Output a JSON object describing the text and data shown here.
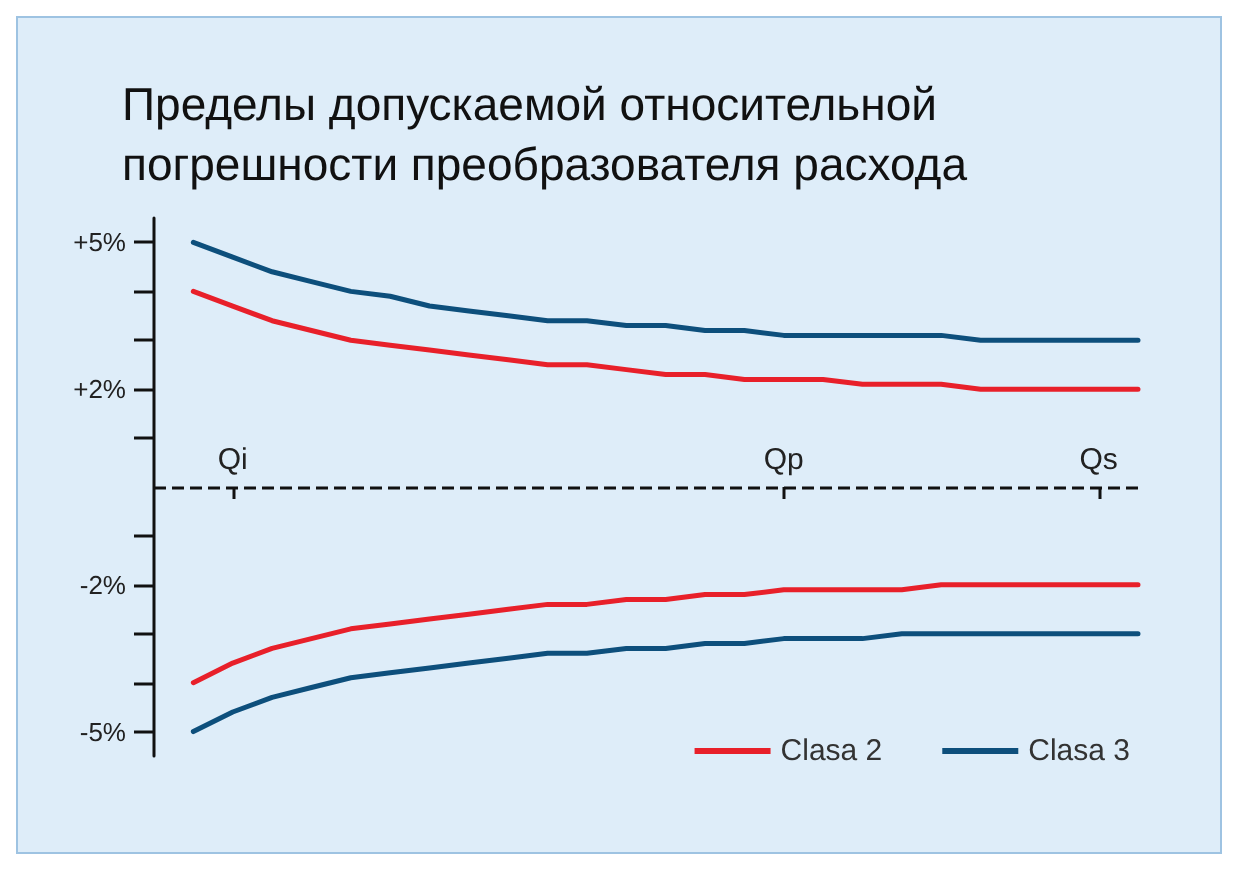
{
  "chart_data": {
    "type": "line",
    "title": "Пределы допускаемой относительной погрешности преобразователя расхода",
    "categories": [
      null,
      null,
      "Qi",
      null,
      null,
      null,
      null,
      null,
      null,
      null,
      null,
      null,
      null,
      null,
      null,
      null,
      "Qp",
      null,
      null,
      null,
      null,
      null,
      null,
      null,
      "Qs",
      null
    ],
    "series": [
      {
        "name": "Clasa 2",
        "color": "#e8202a",
        "values": [
          null,
          4.0,
          3.7,
          3.4,
          3.2,
          3.0,
          2.9,
          2.8,
          2.7,
          2.6,
          2.5,
          2.5,
          2.4,
          2.3,
          2.3,
          2.2,
          2.2,
          2.2,
          2.1,
          2.1,
          2.1,
          2.0,
          2.0,
          2.0,
          2.0,
          2.0
        ]
      },
      {
        "name": "Clasa 3",
        "color": "#0d4f7c",
        "values": [
          null,
          5.0,
          4.7,
          4.4,
          4.2,
          4.0,
          3.9,
          3.7,
          3.6,
          3.5,
          3.4,
          3.4,
          3.3,
          3.3,
          3.2,
          3.2,
          3.1,
          3.1,
          3.1,
          3.1,
          3.1,
          3.0,
          3.0,
          3.0,
          3.0,
          3.0
        ]
      },
      {
        "color": "#e8202a",
        "values": [
          null,
          -4.0,
          -3.6,
          -3.3,
          -3.1,
          -2.9,
          -2.8,
          -2.7,
          -2.6,
          -2.5,
          -2.4,
          -2.4,
          -2.3,
          -2.3,
          -2.2,
          -2.2,
          -2.1,
          -2.1,
          -2.1,
          -2.1,
          -2.0,
          -2.0,
          -2.0,
          -2.0,
          -2.0,
          -2.0
        ]
      },
      {
        "color": "#0d4f7c",
        "values": [
          null,
          -5.0,
          -4.6,
          -4.3,
          -4.1,
          -3.9,
          -3.8,
          -3.7,
          -3.6,
          -3.5,
          -3.4,
          -3.4,
          -3.3,
          -3.3,
          -3.2,
          -3.2,
          -3.1,
          -3.1,
          -3.1,
          -3.0,
          -3.0,
          -3.0,
          -3.0,
          -3.0,
          -3.0,
          -3.0
        ]
      }
    ],
    "ylim": [
      -5.5,
      5.5
    ],
    "yticks": [
      {
        "value": -5,
        "label": "-5%"
      },
      {
        "value": -4,
        "label": null
      },
      {
        "value": -3,
        "label": null
      },
      {
        "value": -2,
        "label": "-2%"
      },
      {
        "value": -1,
        "label": null
      },
      {
        "value": 1,
        "label": null
      },
      {
        "value": 2,
        "label": "+2%"
      },
      {
        "value": 3,
        "label": null
      },
      {
        "value": 4,
        "label": null
      },
      {
        "value": 5,
        "label": "+5%"
      }
    ],
    "ref_lines": [
      {
        "axis": "y",
        "value": 0,
        "color": "#111111",
        "line_style": "dashed"
      }
    ],
    "grid": false,
    "legend": "bottom right",
    "marker": "none",
    "line_style": "solid"
  }
}
